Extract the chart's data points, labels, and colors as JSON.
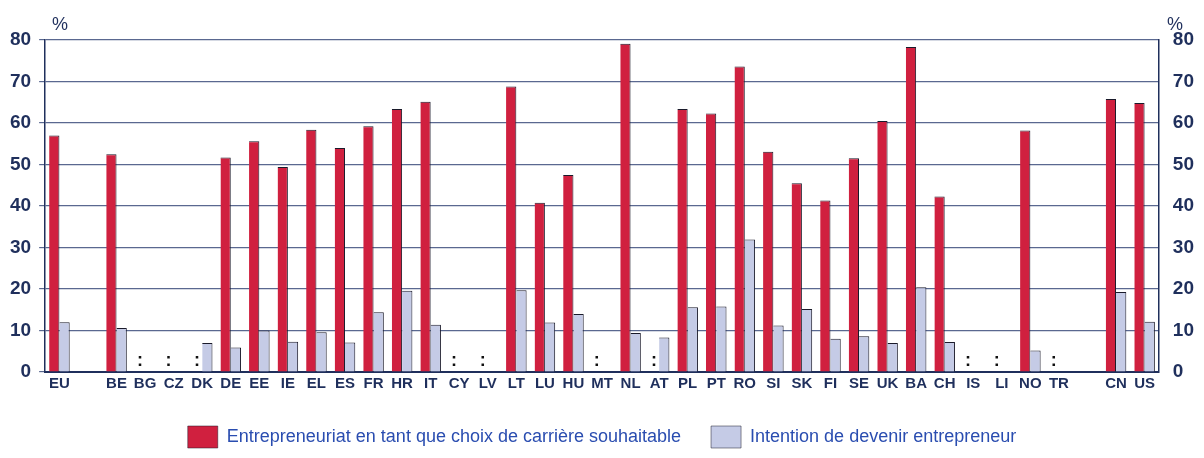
{
  "chart_data": {
    "type": "bar",
    "categories": [
      "EU",
      null,
      "BE",
      "BG",
      "CZ",
      "DK",
      "DE",
      "EE",
      "IE",
      "EL",
      "ES",
      "FR",
      "HR",
      "IT",
      "CY",
      "LV",
      "LT",
      "LU",
      "HU",
      "MT",
      "NL",
      "AT",
      "PL",
      "PT",
      "RO",
      "SI",
      "SK",
      "FI",
      "SE",
      "UK",
      "BA",
      "CH",
      "IS",
      "LI",
      "NO",
      "TR",
      null,
      "CN",
      "US"
    ],
    "series": [
      {
        "name": "Entrepreneuriat en tant que choix de carrière souhaitable",
        "color": "#d0203f",
        "values": [
          57,
          null,
          52.5,
          null,
          null,
          null,
          51.7,
          55.6,
          49.4,
          58.4,
          54,
          59.2,
          63.4,
          65.1,
          null,
          null,
          68.8,
          40.8,
          47.5,
          null,
          79.1,
          null,
          63.4,
          62.3,
          73.6,
          53.1,
          45.5,
          41.3,
          51.5,
          60.5,
          78.3,
          42.3,
          null,
          null,
          58.2,
          null,
          null,
          65.8,
          64.8
        ],
        "value_labels": [
          null,
          null,
          null,
          ":",
          ":",
          ":",
          null,
          null,
          null,
          null,
          null,
          null,
          null,
          null,
          ":",
          ":",
          null,
          null,
          null,
          ":",
          null,
          ":",
          null,
          null,
          null,
          null,
          null,
          null,
          null,
          null,
          null,
          null,
          ":",
          ":",
          null,
          ":",
          null,
          null,
          null
        ]
      },
      {
        "name": "Intention de devenir entrepreneur",
        "color": "#c5cbe6",
        "values": [
          12,
          null,
          10.6,
          null,
          null,
          7,
          5.9,
          10,
          7.3,
          9.6,
          7.1,
          14.4,
          19.6,
          11.4,
          null,
          null,
          19.7,
          11.9,
          14,
          null,
          9.4,
          8.3,
          15.6,
          15.8,
          31.9,
          11.2,
          15.2,
          8,
          8.6,
          7,
          20.4,
          7.2,
          null,
          null,
          5.2,
          null,
          null,
          19.3,
          12.1
        ]
      }
    ],
    "ylabel": "%",
    "y2label": "%",
    "ylim": [
      0,
      80
    ],
    "yticks": [
      0,
      10,
      20,
      30,
      40,
      50,
      60,
      70,
      80
    ],
    "y2lim": [
      0,
      80
    ],
    "y2ticks": [
      0,
      10,
      20,
      30,
      40,
      50,
      60,
      70,
      80
    ],
    "grid": "y",
    "legend": "bottom"
  }
}
